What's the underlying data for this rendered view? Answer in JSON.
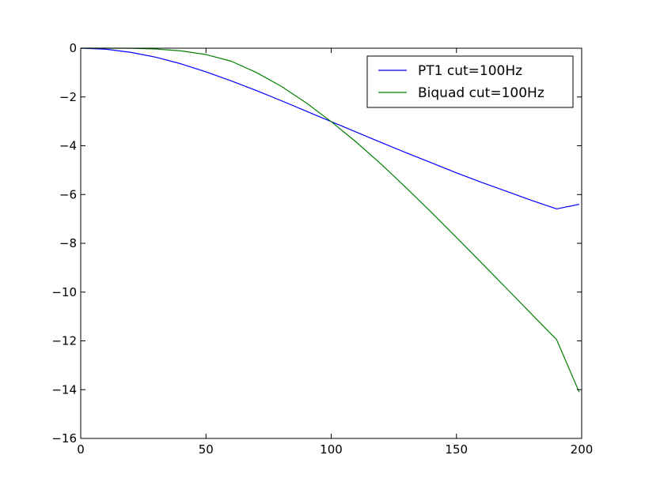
{
  "chart_data": {
    "type": "line",
    "title": "",
    "xlabel": "",
    "ylabel": "",
    "xlim": [
      0,
      200
    ],
    "ylim": [
      -16,
      0
    ],
    "xticks": [
      0,
      50,
      100,
      150,
      200
    ],
    "yticks": [
      0,
      -2,
      -4,
      -6,
      -8,
      -10,
      -12,
      -14,
      -16
    ],
    "xtick_labels": [
      "0",
      "50",
      "100",
      "150",
      "200"
    ],
    "ytick_labels": [
      "0",
      "−2",
      "−4",
      "−6",
      "−8",
      "−10",
      "−12",
      "−14",
      "−16"
    ],
    "grid": false,
    "legend_position": "top-right",
    "series": [
      {
        "name": "PT1 cut=100Hz",
        "color": "#0000ff",
        "x": [
          0,
          10,
          20,
          30,
          40,
          50,
          60,
          70,
          80,
          90,
          100,
          110,
          120,
          130,
          140,
          150,
          160,
          170,
          180,
          190,
          199
        ],
        "y": [
          0,
          -0.04,
          -0.17,
          -0.37,
          -0.64,
          -0.97,
          -1.34,
          -1.73,
          -2.15,
          -2.58,
          -3.01,
          -3.44,
          -3.87,
          -4.29,
          -4.7,
          -5.11,
          -5.5,
          -5.87,
          -6.24,
          -6.59,
          -6.4
        ]
      },
      {
        "name": "Biquad cut=100Hz",
        "color": "#008000",
        "x": [
          0,
          10,
          20,
          30,
          40,
          50,
          60,
          70,
          80,
          90,
          100,
          110,
          120,
          130,
          140,
          150,
          160,
          170,
          180,
          190,
          199
        ],
        "y": [
          0,
          0,
          -0.003,
          -0.035,
          -0.11,
          -0.26,
          -0.53,
          -0.99,
          -1.56,
          -2.24,
          -3.01,
          -3.85,
          -4.76,
          -5.73,
          -6.73,
          -7.76,
          -8.8,
          -9.85,
          -10.9,
          -11.95,
          -14.1
        ]
      }
    ]
  }
}
